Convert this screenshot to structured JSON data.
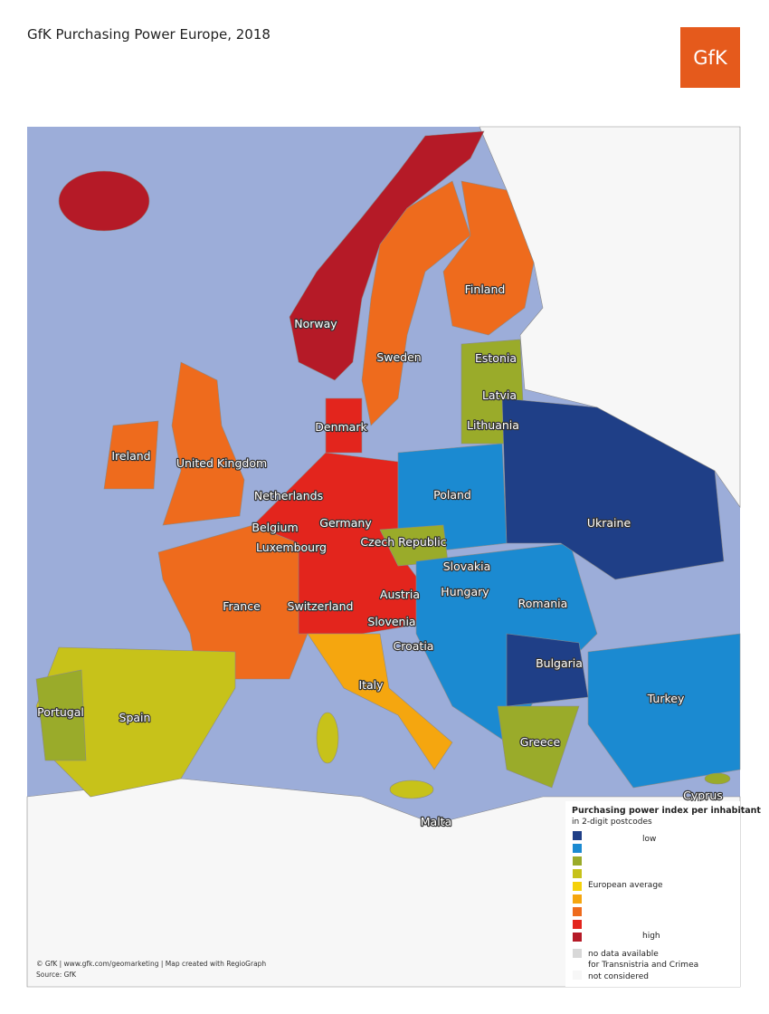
{
  "header": {
    "title": "GfK Purchasing Power Europe, 2018",
    "logo": "GfK"
  },
  "map": {
    "labels": [
      "Norway",
      "Sweden",
      "Finland",
      "Estonia",
      "Latvia",
      "Lithuania",
      "Denmark",
      "Ireland",
      "United Kingdom",
      "Netherlands",
      "Poland",
      "Germany",
      "Belgium",
      "Luxembourg",
      "Czech Republic",
      "Ukraine",
      "Slovakia",
      "Hungary",
      "Austria",
      "Romania",
      "France",
      "Switzerland",
      "Slovenia",
      "Croatia",
      "Bulgaria",
      "Italy",
      "Portugal",
      "Spain",
      "Turkey",
      "Greece",
      "Cyprus",
      "Malta"
    ]
  },
  "legend": {
    "title": "Purchasing power index per inhabitant",
    "subtitle": "in 2-digit postcodes",
    "items": [
      {
        "color": "#1f3f87",
        "label": "low"
      },
      {
        "color": "#1b8ad1"
      },
      {
        "color": "#9aab2a"
      },
      {
        "color": "#c7c21a"
      },
      {
        "color": "#f5d10a",
        "label": "European average"
      },
      {
        "color": "#f5a60f"
      },
      {
        "color": "#ee6b1d"
      },
      {
        "color": "#e3251d"
      },
      {
        "color": "#b51a27",
        "label": "high"
      }
    ],
    "no_data": {
      "color": "#d8d8d8",
      "lines": [
        "no data available",
        "for Transnistria and Crimea"
      ]
    },
    "not_considered": {
      "color": "#f7f7f7",
      "label": "not considered"
    }
  },
  "footer": {
    "credit": "© GfK | www.gfk.com/geomarketing | Map created with RegioGraph",
    "source": "Source: GfK"
  }
}
